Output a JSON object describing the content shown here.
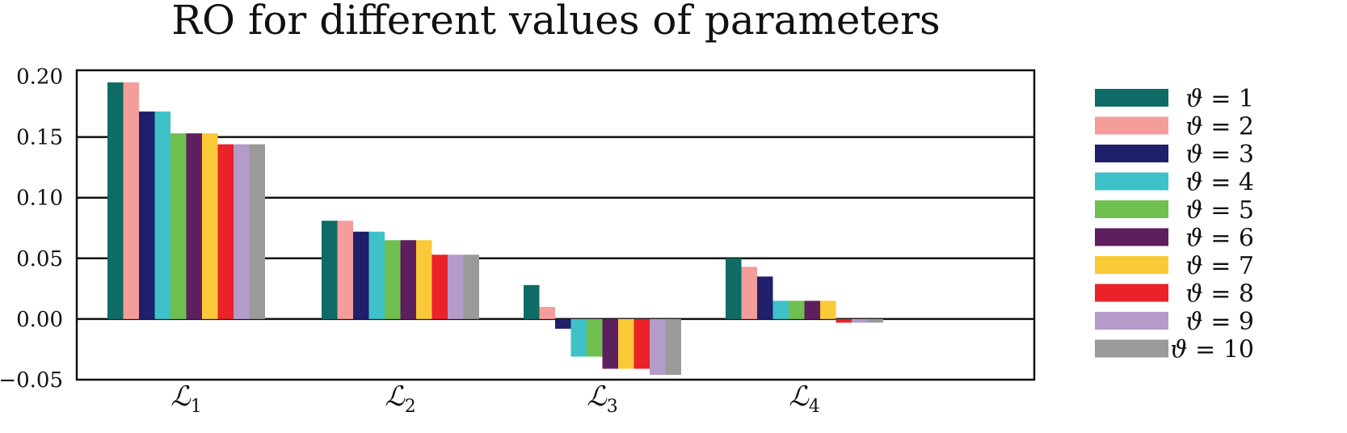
{
  "chart_data": {
    "type": "bar",
    "title": "RO for different values of parameters",
    "categories": [
      {
        "base": "ℒ",
        "sub": "1"
      },
      {
        "base": "ℒ",
        "sub": "2"
      },
      {
        "base": "ℒ",
        "sub": "3"
      },
      {
        "base": "ℒ",
        "sub": "4"
      }
    ],
    "series": [
      {
        "symbol": "ϑ",
        "eq": "= 1",
        "color": "#0f6b66",
        "values": [
          0.195,
          0.081,
          0.028,
          0.05
        ]
      },
      {
        "symbol": "ϑ",
        "eq": "= 2",
        "color": "#f49d9b",
        "values": [
          0.195,
          0.081,
          0.01,
          0.043
        ]
      },
      {
        "symbol": "ϑ",
        "eq": "= 3",
        "color": "#1f1f6b",
        "values": [
          0.171,
          0.072,
          -0.008,
          0.035
        ]
      },
      {
        "symbol": "ϑ",
        "eq": "= 4",
        "color": "#3ec1c9",
        "values": [
          0.171,
          0.072,
          -0.031,
          0.015
        ]
      },
      {
        "symbol": "ϑ",
        "eq": "= 5",
        "color": "#6fc04f",
        "values": [
          0.153,
          0.065,
          -0.031,
          0.015
        ]
      },
      {
        "symbol": "ϑ",
        "eq": "= 6",
        "color": "#5e1f5f",
        "values": [
          0.153,
          0.065,
          -0.041,
          0.015
        ]
      },
      {
        "symbol": "ϑ",
        "eq": "= 7",
        "color": "#f9c937",
        "values": [
          0.153,
          0.065,
          -0.041,
          0.015
        ]
      },
      {
        "symbol": "ϑ",
        "eq": "= 8",
        "color": "#ea2229",
        "values": [
          0.144,
          0.053,
          -0.041,
          -0.003
        ]
      },
      {
        "symbol": "ϑ",
        "eq": "= 9",
        "color": "#b59bc9",
        "values": [
          0.144,
          0.053,
          -0.046,
          -0.003
        ]
      },
      {
        "symbol": "ϑ",
        "eq": "= 10",
        "color": "#9a9a9a",
        "values": [
          0.144,
          0.053,
          -0.046,
          -0.003
        ]
      }
    ],
    "yticks": [
      "0.20",
      "0.15",
      "0.10",
      "0.05",
      "0.00",
      "−0.05"
    ],
    "ytick_values": [
      0.2,
      0.15,
      0.1,
      0.05,
      0.0,
      -0.05
    ],
    "ylim": [
      -0.05,
      0.205
    ],
    "grid": "horizontal",
    "legend_position": "right"
  }
}
